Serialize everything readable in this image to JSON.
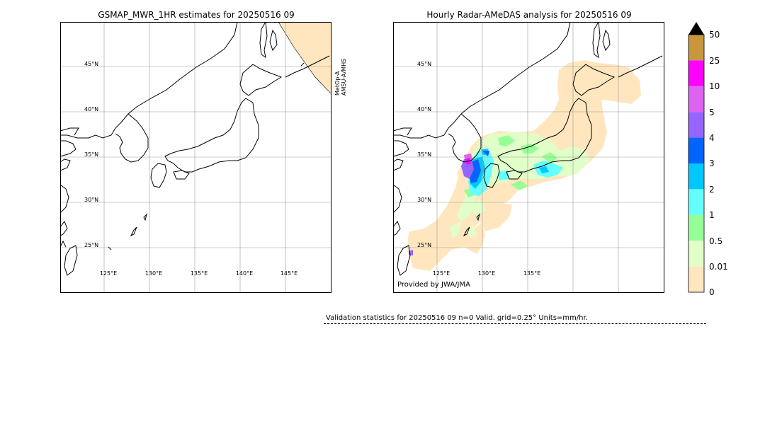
{
  "left_panel": {
    "title": "GSMAP_MWR_1HR estimates for 20250516 09",
    "satellite_lines": [
      "MetOp-A",
      "AMSU-A/MHS"
    ],
    "lat_labels": [
      "45°N",
      "40°N",
      "35°N",
      "30°N",
      "25°N"
    ],
    "lon_labels": [
      "125°E",
      "130°E",
      "135°E",
      "140°E",
      "145°E"
    ]
  },
  "right_panel": {
    "title": "Hourly Radar-AMeDAS analysis for 20250516 09",
    "lat_labels": [
      "45°N",
      "40°N",
      "35°N",
      "30°N",
      "25°N"
    ],
    "lon_labels": [
      "125°E",
      "130°E",
      "135°E"
    ],
    "credit": "Provided by JWA/JMA"
  },
  "colorbar": {
    "labels": [
      "50",
      "25",
      "10",
      "5",
      "4",
      "3",
      "2",
      "1",
      "0.5",
      "0.01",
      "0"
    ],
    "colors": [
      "#c8963c",
      "#ff00ff",
      "#dc64f0",
      "#9664ff",
      "#0064ff",
      "#00c8ff",
      "#64ffff",
      "#96ff96",
      "#e1ffc8",
      "#ffe6be"
    ],
    "extend_color": "#000000"
  },
  "validation": {
    "text": "Validation statistics for 20250516 09  n=0 Valid. grid=0.25° Units=mm/hr."
  }
}
